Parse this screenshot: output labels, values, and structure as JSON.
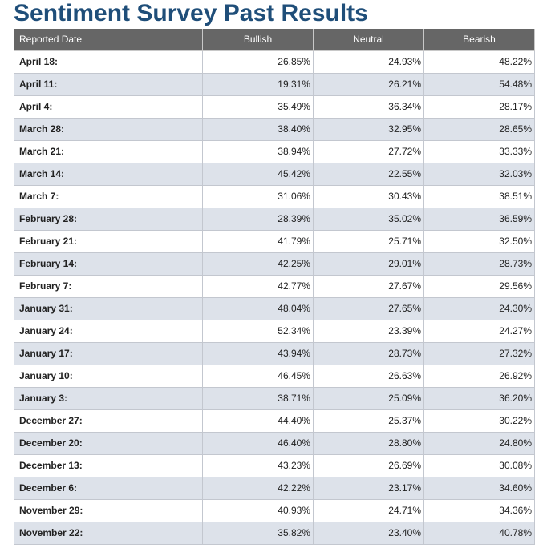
{
  "page": {
    "title": "Sentiment Survey Past Results"
  },
  "table": {
    "headers": [
      "Reported Date",
      "Bullish",
      "Neutral",
      "Bearish"
    ],
    "rows": [
      {
        "date": "April 18:",
        "bullish": "26.85%",
        "neutral": "24.93%",
        "bearish": "48.22%"
      },
      {
        "date": "April 11:",
        "bullish": "19.31%",
        "neutral": "26.21%",
        "bearish": "54.48%"
      },
      {
        "date": "April 4:",
        "bullish": "35.49%",
        "neutral": "36.34%",
        "bearish": "28.17%"
      },
      {
        "date": "March 28:",
        "bullish": "38.40%",
        "neutral": "32.95%",
        "bearish": "28.65%"
      },
      {
        "date": "March 21:",
        "bullish": "38.94%",
        "neutral": "27.72%",
        "bearish": "33.33%"
      },
      {
        "date": "March 14:",
        "bullish": "45.42%",
        "neutral": "22.55%",
        "bearish": "32.03%"
      },
      {
        "date": "March 7:",
        "bullish": "31.06%",
        "neutral": "30.43%",
        "bearish": "38.51%"
      },
      {
        "date": "February 28:",
        "bullish": "28.39%",
        "neutral": "35.02%",
        "bearish": "36.59%"
      },
      {
        "date": "February 21:",
        "bullish": "41.79%",
        "neutral": "25.71%",
        "bearish": "32.50%"
      },
      {
        "date": "February 14:",
        "bullish": "42.25%",
        "neutral": "29.01%",
        "bearish": "28.73%"
      },
      {
        "date": "February 7:",
        "bullish": "42.77%",
        "neutral": "27.67%",
        "bearish": "29.56%"
      },
      {
        "date": "January 31:",
        "bullish": "48.04%",
        "neutral": "27.65%",
        "bearish": "24.30%"
      },
      {
        "date": "January 24:",
        "bullish": "52.34%",
        "neutral": "23.39%",
        "bearish": "24.27%"
      },
      {
        "date": "January 17:",
        "bullish": "43.94%",
        "neutral": "28.73%",
        "bearish": "27.32%"
      },
      {
        "date": "January 10:",
        "bullish": "46.45%",
        "neutral": "26.63%",
        "bearish": "26.92%"
      },
      {
        "date": "January 3:",
        "bullish": "38.71%",
        "neutral": "25.09%",
        "bearish": "36.20%"
      },
      {
        "date": "December 27:",
        "bullish": "44.40%",
        "neutral": "25.37%",
        "bearish": "30.22%"
      },
      {
        "date": "December 20:",
        "bullish": "46.40%",
        "neutral": "28.80%",
        "bearish": "24.80%"
      },
      {
        "date": "December 13:",
        "bullish": "43.23%",
        "neutral": "26.69%",
        "bearish": "30.08%"
      },
      {
        "date": "December 6:",
        "bullish": "42.22%",
        "neutral": "23.17%",
        "bearish": "34.60%"
      },
      {
        "date": "November 29:",
        "bullish": "40.93%",
        "neutral": "24.71%",
        "bearish": "34.36%"
      },
      {
        "date": "November 22:",
        "bullish": "35.82%",
        "neutral": "23.40%",
        "bearish": "40.78%"
      }
    ]
  },
  "colors": {
    "title": "#1f4e79",
    "header_background": "#666666",
    "alt_row_background": "#dde2ea"
  }
}
